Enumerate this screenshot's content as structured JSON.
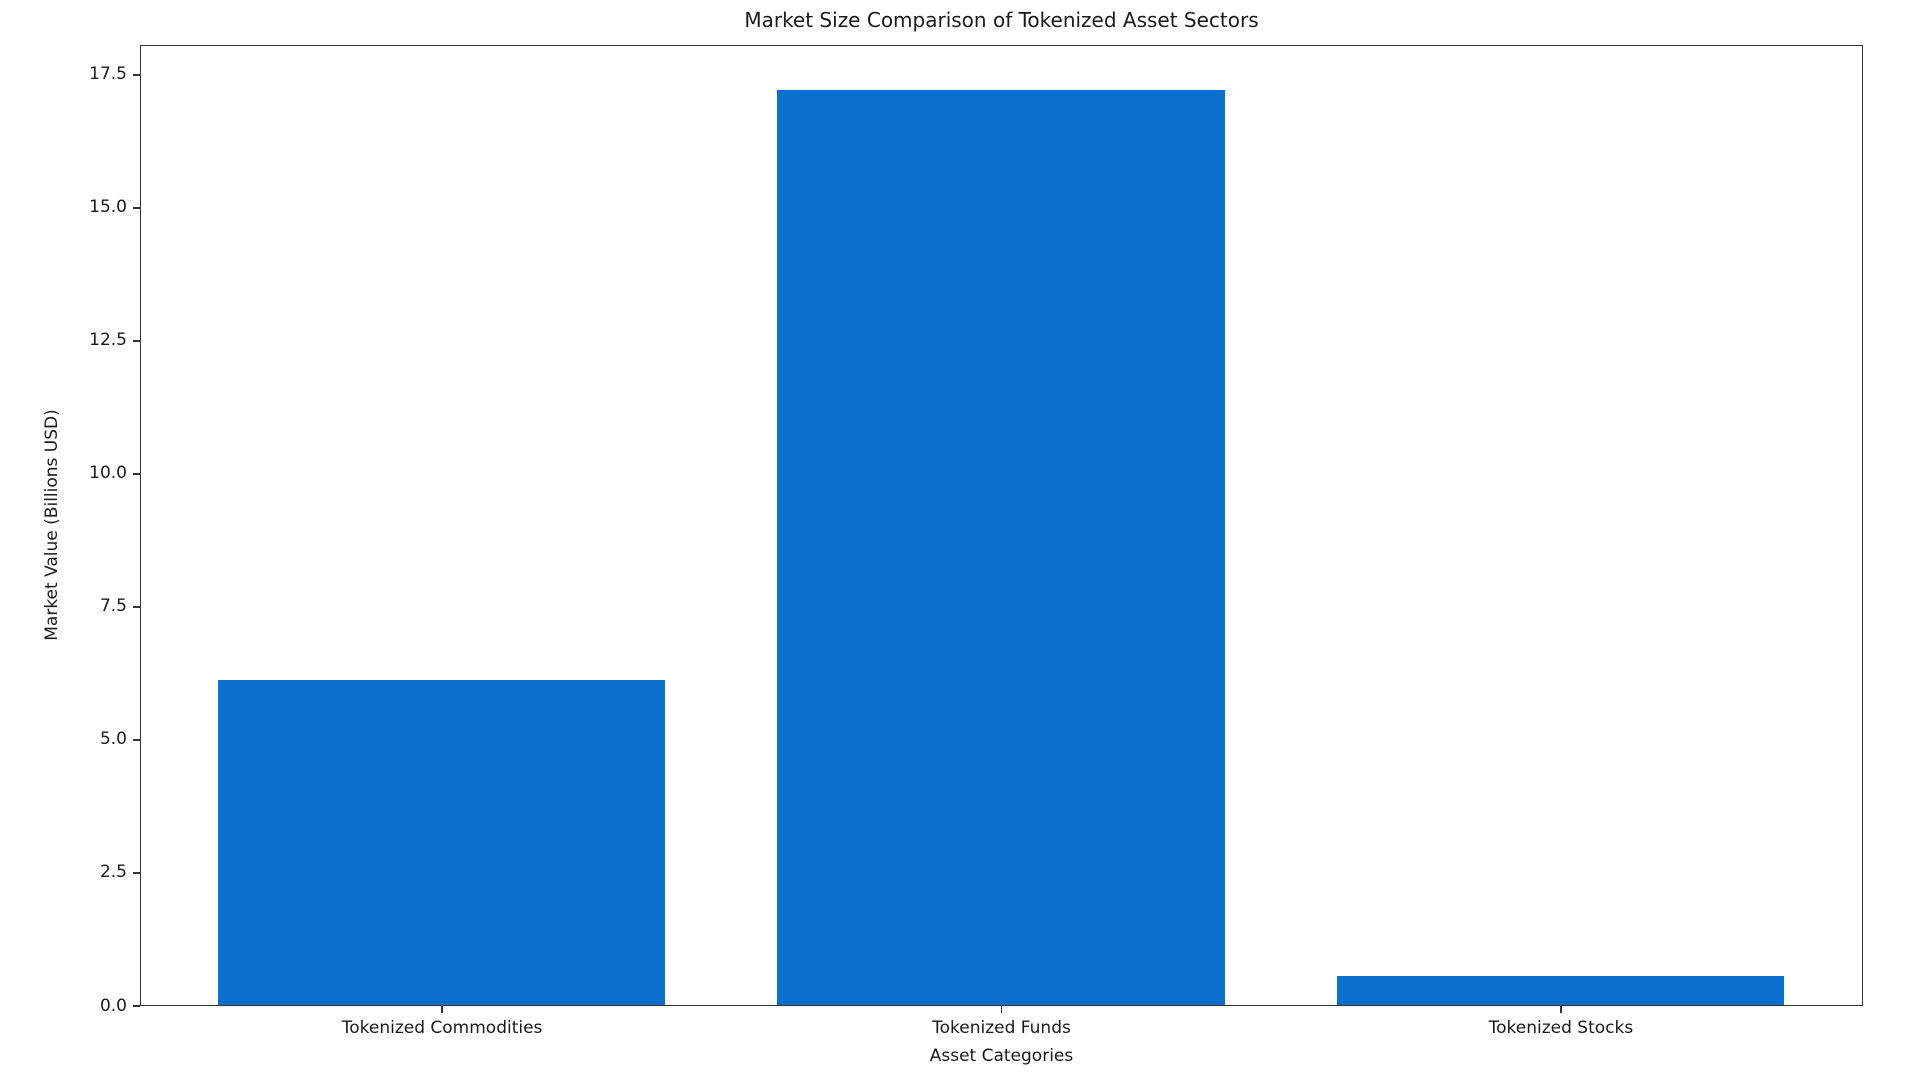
{
  "chart_data": {
    "type": "bar",
    "title": "Market Size Comparison of Tokenized Asset Sectors",
    "xlabel": "Asset Categories",
    "ylabel": "Market Value (Billions USD)",
    "categories": [
      "Tokenized Commodities",
      "Tokenized Funds",
      "Tokenized Stocks"
    ],
    "values": [
      6.1,
      17.2,
      0.55
    ],
    "yticks": [
      0.0,
      2.5,
      5.0,
      7.5,
      10.0,
      12.5,
      15.0,
      17.5
    ],
    "yticklabels": [
      "0.0",
      "2.5",
      "5.0",
      "7.5",
      "10.0",
      "12.5",
      "15.0",
      "17.5"
    ],
    "ylim": [
      0,
      18.06
    ],
    "xlim": [
      -0.54,
      2.54
    ],
    "bar_width": 0.8,
    "bar_color": "#0b6fd0",
    "grid": "off",
    "legend": "none"
  }
}
